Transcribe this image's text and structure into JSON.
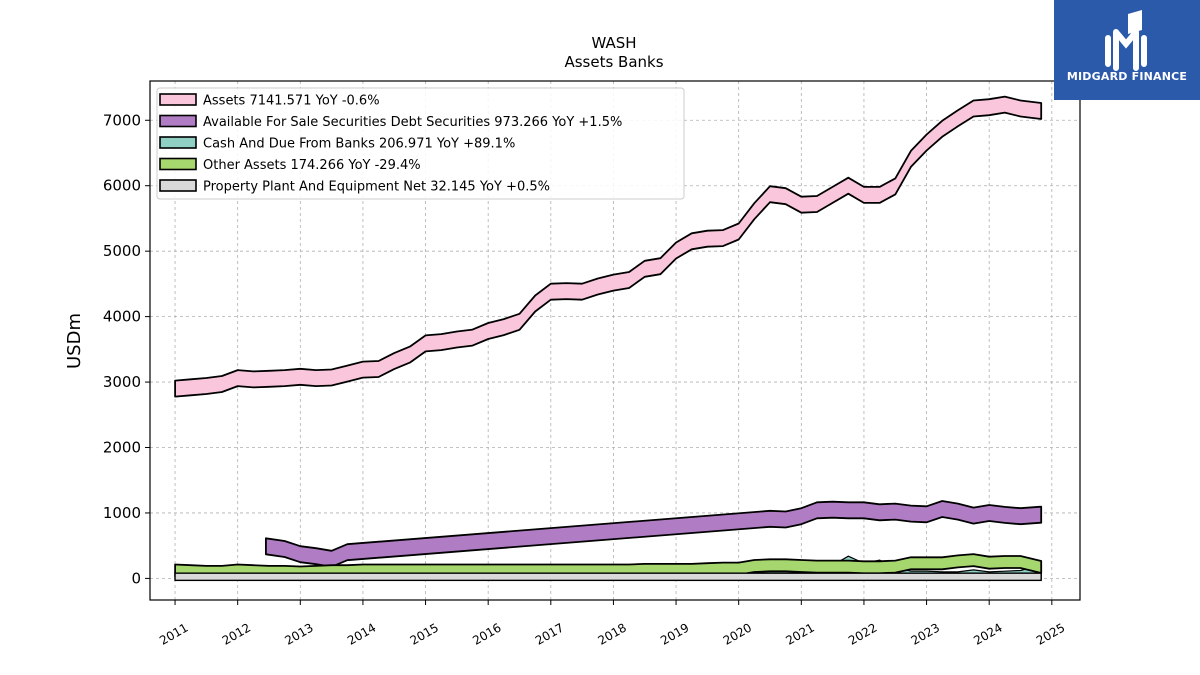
{
  "brand": {
    "name": "MIDGARD FINANCE"
  },
  "chart_data": {
    "type": "area",
    "title": "WASH",
    "subtitle": "Assets Banks",
    "xlabel": "",
    "ylabel": "USDm",
    "xlim": [
      2010.6,
      2025.45
    ],
    "ylim": [
      -330,
      7600
    ],
    "x_ticks": [
      "2011",
      "2012",
      "2013",
      "2014",
      "2015",
      "2016",
      "2017",
      "2018",
      "2019",
      "2020",
      "2021",
      "2022",
      "2023",
      "2024",
      "2025"
    ],
    "y_ticks": [
      "0",
      "1000",
      "2000",
      "3000",
      "4000",
      "5000",
      "6000",
      "7000"
    ],
    "grid": true,
    "legend_position": "top-left",
    "legend": [
      "Assets  7141.571 YoY -0.6%",
      "Available For Sale Securities Debt Securities  973.266 YoY +1.5%",
      "Cash And Due From Banks  206.971 YoY +89.1%",
      "Other Assets  174.266 YoY -29.4%",
      "Property Plant And Equipment Net  32.145 YoY +0.5%"
    ],
    "series": [
      {
        "name": "Assets",
        "color": "#f9c6dc",
        "points": [
          [
            2011.0,
            2900
          ],
          [
            2011.25,
            2920
          ],
          [
            2011.5,
            2940
          ],
          [
            2011.75,
            2970
          ],
          [
            2012.0,
            3060
          ],
          [
            2012.25,
            3040
          ],
          [
            2012.5,
            3050
          ],
          [
            2012.75,
            3060
          ],
          [
            2013.0,
            3080
          ],
          [
            2013.25,
            3060
          ],
          [
            2013.5,
            3070
          ],
          [
            2013.75,
            3130
          ],
          [
            2014.0,
            3190
          ],
          [
            2014.25,
            3200
          ],
          [
            2014.5,
            3320
          ],
          [
            2014.75,
            3420
          ],
          [
            2015.0,
            3590
          ],
          [
            2015.25,
            3610
          ],
          [
            2015.5,
            3650
          ],
          [
            2015.75,
            3680
          ],
          [
            2016.0,
            3780
          ],
          [
            2016.25,
            3840
          ],
          [
            2016.5,
            3920
          ],
          [
            2016.75,
            4200
          ],
          [
            2017.0,
            4380
          ],
          [
            2017.25,
            4390
          ],
          [
            2017.5,
            4380
          ],
          [
            2017.75,
            4460
          ],
          [
            2018.0,
            4520
          ],
          [
            2018.25,
            4560
          ],
          [
            2018.5,
            4730
          ],
          [
            2018.75,
            4770
          ],
          [
            2019.0,
            5010
          ],
          [
            2019.25,
            5150
          ],
          [
            2019.5,
            5190
          ],
          [
            2019.75,
            5200
          ],
          [
            2020.0,
            5300
          ],
          [
            2020.25,
            5610
          ],
          [
            2020.5,
            5870
          ],
          [
            2020.75,
            5840
          ],
          [
            2021.0,
            5710
          ],
          [
            2021.25,
            5720
          ],
          [
            2021.5,
            5860
          ],
          [
            2021.75,
            6000
          ],
          [
            2022.0,
            5860
          ],
          [
            2022.25,
            5860
          ],
          [
            2022.5,
            5990
          ],
          [
            2022.75,
            6410
          ],
          [
            2023.0,
            6660
          ],
          [
            2023.25,
            6870
          ],
          [
            2023.5,
            7030
          ],
          [
            2023.75,
            7180
          ],
          [
            2024.0,
            7200
          ],
          [
            2024.25,
            7240
          ],
          [
            2024.5,
            7180
          ],
          [
            2024.83,
            7141.571
          ]
        ]
      },
      {
        "name": "Available For Sale Securities Debt Securities",
        "color": "#b07cc4",
        "points": [
          [
            2012.45,
            490
          ],
          [
            2012.75,
            450
          ],
          [
            2013.0,
            370
          ],
          [
            2013.25,
            340
          ],
          [
            2013.5,
            300
          ],
          [
            2013.75,
            400
          ],
          [
            2020.5,
            910
          ],
          [
            2020.75,
            900
          ],
          [
            2021.0,
            950
          ],
          [
            2021.25,
            1040
          ],
          [
            2021.5,
            1050
          ],
          [
            2021.75,
            1040
          ],
          [
            2022.0,
            1040
          ],
          [
            2022.25,
            1010
          ],
          [
            2022.5,
            1020
          ],
          [
            2022.75,
            990
          ],
          [
            2023.0,
            980
          ],
          [
            2023.25,
            1060
          ],
          [
            2023.5,
            1020
          ],
          [
            2023.75,
            960
          ],
          [
            2024.0,
            1000
          ],
          [
            2024.25,
            970
          ],
          [
            2024.5,
            950
          ],
          [
            2024.83,
            973.266
          ]
        ]
      },
      {
        "name": "Cash And Due From Banks",
        "color": "#8fcfc4",
        "points": [
          [
            2011.0,
            60
          ],
          [
            2011.25,
            80
          ],
          [
            2011.5,
            90
          ],
          [
            2011.75,
            100
          ],
          [
            2012.0,
            110
          ],
          [
            2012.25,
            100
          ],
          [
            2012.5,
            90
          ],
          [
            2012.75,
            110
          ],
          [
            2013.0,
            120
          ],
          [
            2013.25,
            130
          ],
          [
            2013.5,
            130
          ],
          [
            2013.75,
            190
          ],
          [
            2014.0,
            140
          ],
          [
            2014.25,
            170
          ],
          [
            2014.5,
            200
          ],
          [
            2014.75,
            140
          ],
          [
            2015.0,
            140
          ],
          [
            2015.25,
            120
          ],
          [
            2015.5,
            140
          ],
          [
            2015.75,
            170
          ],
          [
            2016.0,
            150
          ],
          [
            2016.25,
            150
          ],
          [
            2016.5,
            170
          ],
          [
            2016.75,
            180
          ],
          [
            2017.0,
            160
          ],
          [
            2017.25,
            170
          ],
          [
            2017.5,
            180
          ],
          [
            2017.75,
            190
          ],
          [
            2018.0,
            130
          ],
          [
            2018.25,
            150
          ],
          [
            2018.5,
            190
          ],
          [
            2018.75,
            150
          ],
          [
            2019.0,
            150
          ],
          [
            2019.25,
            150
          ],
          [
            2019.5,
            170
          ],
          [
            2019.75,
            200
          ],
          [
            2020.0,
            190
          ],
          [
            2020.25,
            240
          ],
          [
            2020.5,
            270
          ],
          [
            2020.75,
            260
          ],
          [
            2021.0,
            250
          ],
          [
            2021.25,
            220
          ],
          [
            2021.5,
            200
          ],
          [
            2021.75,
            340
          ],
          [
            2022.0,
            230
          ],
          [
            2022.25,
            280
          ],
          [
            2022.5,
            170
          ],
          [
            2022.75,
            110
          ],
          [
            2023.0,
            110
          ],
          [
            2023.25,
            100
          ],
          [
            2023.5,
            100
          ],
          [
            2023.75,
            130
          ],
          [
            2024.0,
            100
          ],
          [
            2024.25,
            110
          ],
          [
            2024.5,
            120
          ],
          [
            2024.83,
            206.971
          ]
        ]
      },
      {
        "name": "Other Assets",
        "color": "#a6d66e",
        "points": [
          [
            2011.0,
            120
          ],
          [
            2011.25,
            110
          ],
          [
            2011.5,
            100
          ],
          [
            2011.75,
            100
          ],
          [
            2012.0,
            120
          ],
          [
            2012.25,
            110
          ],
          [
            2012.5,
            100
          ],
          [
            2012.75,
            100
          ],
          [
            2013.0,
            90
          ],
          [
            2013.25,
            100
          ],
          [
            2013.5,
            110
          ],
          [
            2013.75,
            110
          ],
          [
            2014.0,
            120
          ],
          [
            2014.25,
            120
          ],
          [
            2014.5,
            120
          ],
          [
            2014.75,
            120
          ],
          [
            2015.0,
            120
          ],
          [
            2015.25,
            120
          ],
          [
            2015.5,
            120
          ],
          [
            2015.75,
            120
          ],
          [
            2016.0,
            120
          ],
          [
            2016.25,
            120
          ],
          [
            2016.5,
            120
          ],
          [
            2016.75,
            120
          ],
          [
            2017.0,
            120
          ],
          [
            2017.25,
            120
          ],
          [
            2017.5,
            120
          ],
          [
            2017.75,
            120
          ],
          [
            2018.0,
            120
          ],
          [
            2018.25,
            120
          ],
          [
            2018.5,
            130
          ],
          [
            2018.75,
            130
          ],
          [
            2019.0,
            130
          ],
          [
            2019.25,
            130
          ],
          [
            2019.5,
            140
          ],
          [
            2019.75,
            150
          ],
          [
            2020.0,
            150
          ],
          [
            2020.25,
            190
          ],
          [
            2020.5,
            200
          ],
          [
            2020.75,
            200
          ],
          [
            2021.0,
            190
          ],
          [
            2021.25,
            180
          ],
          [
            2021.5,
            180
          ],
          [
            2021.75,
            180
          ],
          [
            2022.0,
            170
          ],
          [
            2022.25,
            170
          ],
          [
            2022.5,
            180
          ],
          [
            2022.75,
            230
          ],
          [
            2023.0,
            230
          ],
          [
            2023.25,
            230
          ],
          [
            2023.5,
            260
          ],
          [
            2023.75,
            280
          ],
          [
            2024.0,
            240
          ],
          [
            2024.25,
            250
          ],
          [
            2024.5,
            250
          ],
          [
            2024.83,
            174.266
          ]
        ]
      },
      {
        "name": "Property Plant And Equipment Net",
        "color": "#d9d9d9",
        "points": [
          [
            2011.0,
            30
          ],
          [
            2012.0,
            30
          ],
          [
            2013.0,
            30
          ],
          [
            2014.0,
            30
          ],
          [
            2015.0,
            30
          ],
          [
            2016.0,
            30
          ],
          [
            2017.0,
            30
          ],
          [
            2018.0,
            30
          ],
          [
            2019.0,
            30
          ],
          [
            2020.0,
            30
          ],
          [
            2021.0,
            30
          ],
          [
            2022.0,
            30
          ],
          [
            2023.0,
            31
          ],
          [
            2024.0,
            32
          ],
          [
            2024.83,
            32.145
          ]
        ]
      }
    ]
  }
}
